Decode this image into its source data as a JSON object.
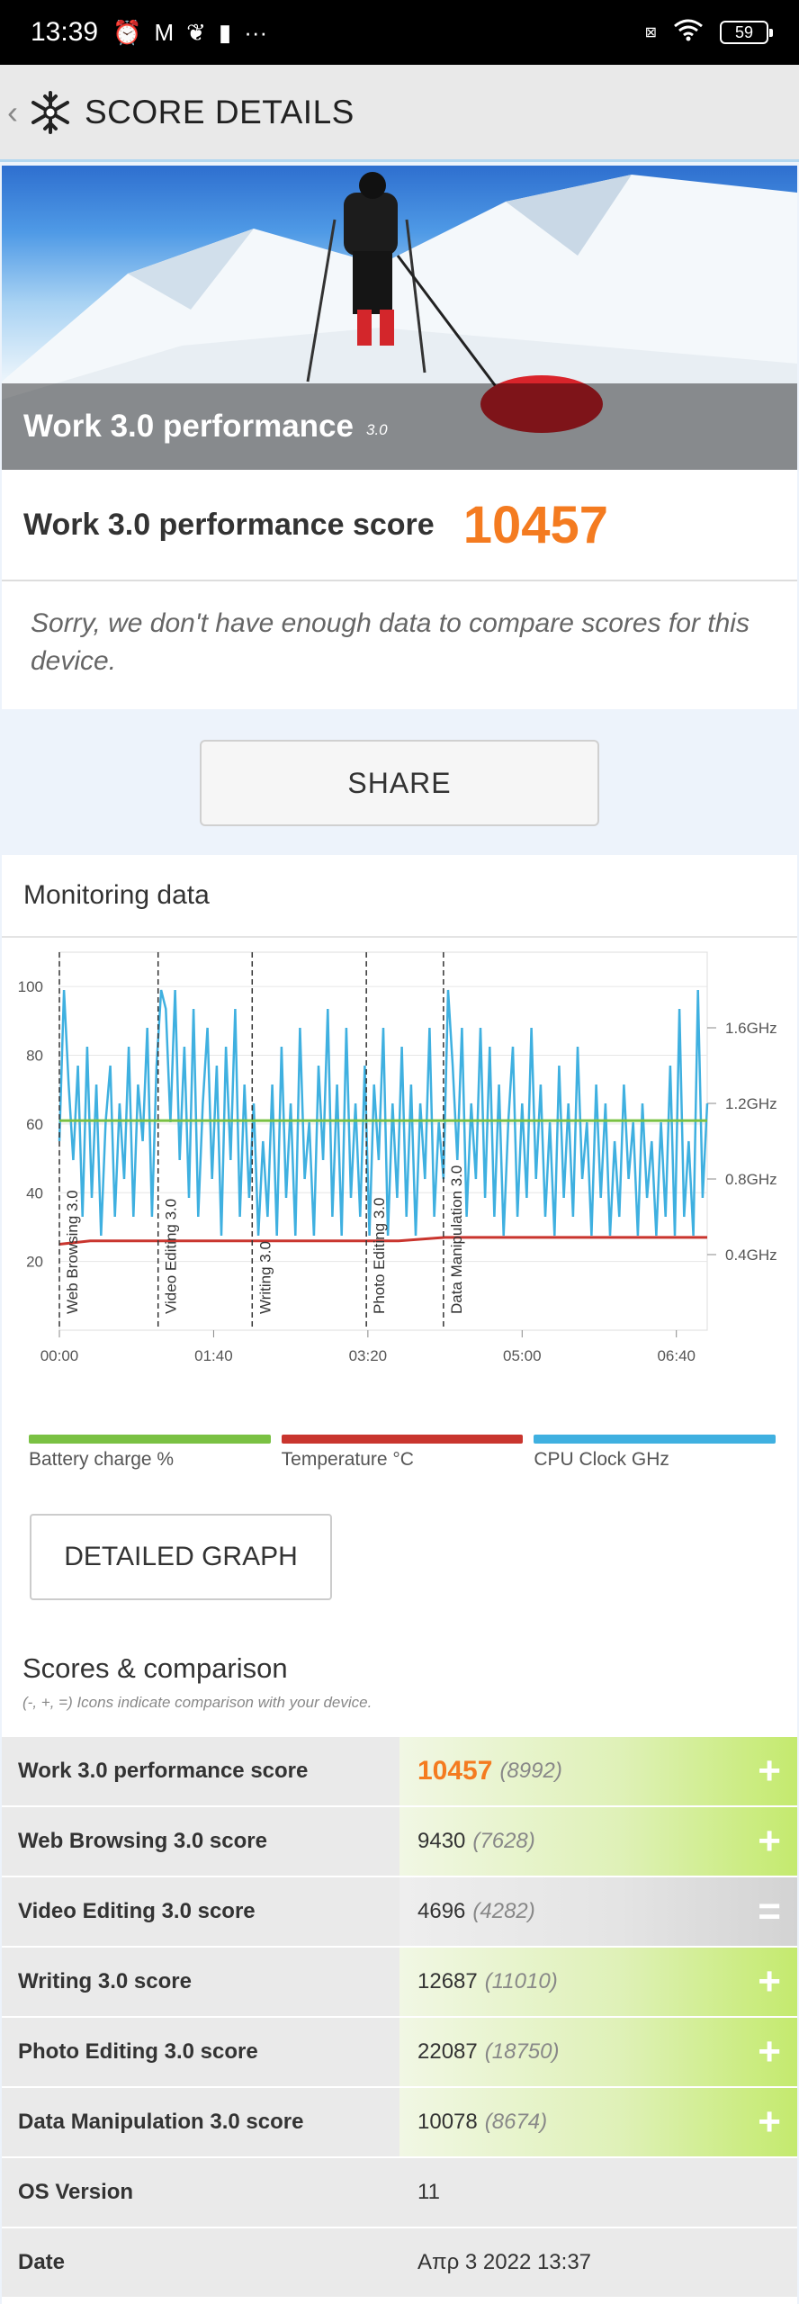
{
  "status_bar": {
    "time": "13:39",
    "left_icons": [
      "alarm-off-icon",
      "gmail-icon",
      "leaf-icon",
      "message-icon",
      "more-icon"
    ],
    "right_icons": [
      "sim-off-icon",
      "wifi-icon",
      "battery-icon"
    ],
    "battery": "59"
  },
  "app_bar": {
    "title": "SCORE DETAILS"
  },
  "hero": {
    "title": "Work 3.0 performance",
    "version": "3.0"
  },
  "score": {
    "label": "Work 3.0 performance score",
    "value": "10457",
    "message": "Sorry, we don't have enough data to compare scores for this device."
  },
  "share_label": "SHARE",
  "monitoring": {
    "title": "Monitoring data",
    "legend": [
      {
        "label": "Battery charge %",
        "color": "#7ac143"
      },
      {
        "label": "Temperature °C",
        "color": "#c9352e"
      },
      {
        "label": "CPU Clock GHz",
        "color": "#3fb0e0"
      }
    ],
    "detail_button": "DETAILED GRAPH"
  },
  "chart_data": {
    "type": "line",
    "x_ticks": [
      "00:00",
      "01:40",
      "03:20",
      "05:00",
      "06:40"
    ],
    "x_range_seconds": [
      0,
      420
    ],
    "y_left_ticks": [
      "100",
      "80",
      "60",
      "40",
      "20"
    ],
    "y_left_range": [
      0,
      110
    ],
    "y_right_ticks": [
      "1.6GHz",
      "1.2GHz",
      "0.8GHz",
      "0.4GHz"
    ],
    "y_right_range_ghz": [
      0,
      2.0
    ],
    "sections": [
      {
        "label": "Web Browsing 3.0",
        "start_s": 0
      },
      {
        "label": "Video Editing 3.0",
        "start_s": 64
      },
      {
        "label": "Writing 3.0",
        "start_s": 125
      },
      {
        "label": "Photo Editing 3.0",
        "start_s": 199
      },
      {
        "label": "Data Manipulation 3.0",
        "start_s": 249
      }
    ],
    "series": [
      {
        "name": "Battery charge %",
        "color": "#7ac143",
        "points": [
          [
            0,
            61
          ],
          [
            420,
            61
          ]
        ]
      },
      {
        "name": "Temperature °C",
        "color": "#c9352e",
        "points": [
          [
            0,
            25
          ],
          [
            20,
            26
          ],
          [
            120,
            26
          ],
          [
            220,
            26
          ],
          [
            250,
            27
          ],
          [
            420,
            27
          ]
        ]
      },
      {
        "name": "CPU Clock GHz",
        "color": "#3fb0e0",
        "points": [
          [
            0,
            1.0
          ],
          [
            3,
            1.8
          ],
          [
            6,
            1.3
          ],
          [
            9,
            0.9
          ],
          [
            12,
            1.4
          ],
          [
            15,
            0.6
          ],
          [
            18,
            1.5
          ],
          [
            21,
            0.7
          ],
          [
            24,
            1.3
          ],
          [
            27,
            0.5
          ],
          [
            30,
            1.1
          ],
          [
            33,
            1.4
          ],
          [
            36,
            0.6
          ],
          [
            39,
            1.2
          ],
          [
            42,
            0.8
          ],
          [
            45,
            1.5
          ],
          [
            48,
            0.6
          ],
          [
            51,
            1.3
          ],
          [
            54,
            1.0
          ],
          [
            57,
            1.6
          ],
          [
            60,
            0.6
          ],
          [
            63,
            1.4
          ],
          [
            66,
            1.8
          ],
          [
            69,
            1.7
          ],
          [
            72,
            1.1
          ],
          [
            75,
            1.8
          ],
          [
            78,
            0.9
          ],
          [
            81,
            1.5
          ],
          [
            84,
            0.7
          ],
          [
            87,
            1.7
          ],
          [
            90,
            0.6
          ],
          [
            93,
            1.2
          ],
          [
            96,
            1.6
          ],
          [
            99,
            0.8
          ],
          [
            102,
            1.4
          ],
          [
            105,
            0.5
          ],
          [
            108,
            1.5
          ],
          [
            111,
            0.9
          ],
          [
            114,
            1.7
          ],
          [
            117,
            0.6
          ],
          [
            120,
            1.3
          ],
          [
            123,
            0.7
          ],
          [
            126,
            1.2
          ],
          [
            129,
            0.5
          ],
          [
            132,
            1.0
          ],
          [
            135,
            0.6
          ],
          [
            138,
            1.3
          ],
          [
            141,
            0.5
          ],
          [
            144,
            1.5
          ],
          [
            147,
            0.7
          ],
          [
            150,
            1.2
          ],
          [
            153,
            0.5
          ],
          [
            156,
            1.6
          ],
          [
            159,
            0.8
          ],
          [
            162,
            1.1
          ],
          [
            165,
            0.5
          ],
          [
            168,
            1.4
          ],
          [
            171,
            0.9
          ],
          [
            174,
            1.7
          ],
          [
            177,
            0.6
          ],
          [
            180,
            1.3
          ],
          [
            183,
            0.5
          ],
          [
            186,
            1.6
          ],
          [
            189,
            0.7
          ],
          [
            192,
            1.2
          ],
          [
            195,
            0.6
          ],
          [
            198,
            1.4
          ],
          [
            201,
            0.5
          ],
          [
            204,
            1.3
          ],
          [
            207,
            0.9
          ],
          [
            210,
            1.6
          ],
          [
            213,
            0.5
          ],
          [
            216,
            1.2
          ],
          [
            219,
            0.7
          ],
          [
            222,
            1.5
          ],
          [
            225,
            0.6
          ],
          [
            228,
            1.3
          ],
          [
            231,
            0.5
          ],
          [
            234,
            1.2
          ],
          [
            237,
            0.8
          ],
          [
            240,
            1.6
          ],
          [
            243,
            0.6
          ],
          [
            246,
            1.1
          ],
          [
            249,
            0.8
          ],
          [
            252,
            1.8
          ],
          [
            255,
            1.4
          ],
          [
            258,
            0.9
          ],
          [
            261,
            1.6
          ],
          [
            264,
            0.6
          ],
          [
            267,
            1.2
          ],
          [
            270,
            0.8
          ],
          [
            273,
            1.6
          ],
          [
            276,
            0.7
          ],
          [
            279,
            1.5
          ],
          [
            282,
            0.6
          ],
          [
            285,
            1.3
          ],
          [
            288,
            0.5
          ],
          [
            291,
            1.1
          ],
          [
            294,
            1.5
          ],
          [
            297,
            0.6
          ],
          [
            300,
            1.2
          ],
          [
            303,
            0.7
          ],
          [
            306,
            1.6
          ],
          [
            309,
            0.8
          ],
          [
            312,
            1.3
          ],
          [
            315,
            0.6
          ],
          [
            318,
            1.1
          ],
          [
            321,
            0.5
          ],
          [
            324,
            1.4
          ],
          [
            327,
            0.7
          ],
          [
            330,
            1.2
          ],
          [
            333,
            0.6
          ],
          [
            336,
            1.5
          ],
          [
            339,
            0.8
          ],
          [
            342,
            1.1
          ],
          [
            345,
            0.5
          ],
          [
            348,
            1.3
          ],
          [
            351,
            0.7
          ],
          [
            354,
            1.2
          ],
          [
            357,
            0.5
          ],
          [
            360,
            1.0
          ],
          [
            363,
            0.6
          ],
          [
            366,
            1.3
          ],
          [
            369,
            0.8
          ],
          [
            372,
            1.1
          ],
          [
            375,
            0.5
          ],
          [
            378,
            1.2
          ],
          [
            381,
            0.7
          ],
          [
            384,
            1.0
          ],
          [
            387,
            0.5
          ],
          [
            390,
            1.1
          ],
          [
            393,
            0.6
          ],
          [
            396,
            1.4
          ],
          [
            399,
            0.5
          ],
          [
            402,
            1.7
          ],
          [
            405,
            0.6
          ],
          [
            408,
            1.0
          ],
          [
            411,
            0.5
          ],
          [
            414,
            1.8
          ],
          [
            417,
            0.7
          ],
          [
            420,
            1.2
          ]
        ]
      }
    ]
  },
  "scores": {
    "title": "Scores & comparison",
    "subtitle": "(-, +, =) Icons indicate comparison with your device.",
    "rows": [
      {
        "name": "Work 3.0 performance score",
        "value": "10457",
        "compare": "(8992)",
        "sign": "+"
      },
      {
        "name": "Web Browsing 3.0 score",
        "value": "9430",
        "compare": "(7628)",
        "sign": "+"
      },
      {
        "name": "Video Editing 3.0 score",
        "value": "4696",
        "compare": "(4282)",
        "sign": "="
      },
      {
        "name": "Writing 3.0 score",
        "value": "12687",
        "compare": "(11010)",
        "sign": "+"
      },
      {
        "name": "Photo Editing 3.0 score",
        "value": "22087",
        "compare": "(18750)",
        "sign": "+"
      },
      {
        "name": "Data Manipulation 3.0 score",
        "value": "10078",
        "compare": "(8674)",
        "sign": "+"
      },
      {
        "name": "OS Version",
        "value": "11",
        "compare": "",
        "sign": ""
      },
      {
        "name": "Date",
        "value": "Απρ 3 2022 13:37",
        "compare": "",
        "sign": ""
      }
    ]
  }
}
